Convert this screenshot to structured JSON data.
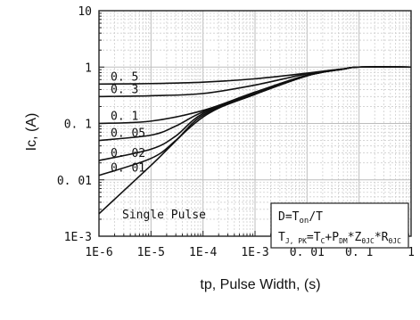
{
  "chart_data": {
    "type": "line",
    "xlabel": "tp, Pulse Width, (s)",
    "ylabel": "Ic, (A)",
    "xscale": "log",
    "yscale": "log",
    "xlim": [
      1e-06,
      1
    ],
    "ylim": [
      0.001,
      10
    ],
    "grid": true,
    "x_tick_labels": [
      "1E-6",
      "1E-5",
      "1E-4",
      "1E-3",
      "0. 01",
      "0. 1",
      "1"
    ],
    "y_tick_labels": [
      "1E-3",
      "0. 01",
      "0. 1",
      "1",
      "10"
    ],
    "series": [
      {
        "name": "0. 5",
        "x": [
          1e-06,
          1e-05,
          0.0001,
          0.001,
          0.01,
          0.05,
          0.1,
          1
        ],
        "y": [
          0.5,
          0.51,
          0.54,
          0.62,
          0.78,
          0.93,
          1.0,
          1.0
        ]
      },
      {
        "name": "0. 3",
        "x": [
          1e-06,
          1e-05,
          0.0001,
          0.001,
          0.01,
          0.05,
          0.1,
          1
        ],
        "y": [
          0.3,
          0.31,
          0.34,
          0.48,
          0.76,
          0.93,
          1.0,
          1.0
        ]
      },
      {
        "name": "0. 1",
        "x": [
          1e-06,
          1e-05,
          0.0001,
          0.001,
          0.01,
          0.05,
          0.1,
          1
        ],
        "y": [
          0.1,
          0.11,
          0.17,
          0.36,
          0.72,
          0.92,
          1.0,
          1.0
        ]
      },
      {
        "name": "0. 05",
        "x": [
          1e-06,
          1e-05,
          3e-05,
          0.0001,
          0.001,
          0.01,
          0.05,
          0.1,
          1
        ],
        "y": [
          0.05,
          0.062,
          0.09,
          0.16,
          0.34,
          0.71,
          0.92,
          1.0,
          1.0
        ]
      },
      {
        "name": "0. 02",
        "x": [
          1e-06,
          1e-05,
          3e-05,
          0.0001,
          0.001,
          0.01,
          0.05,
          0.1,
          1
        ],
        "y": [
          0.022,
          0.035,
          0.06,
          0.15,
          0.33,
          0.7,
          0.92,
          1.0,
          1.0
        ]
      },
      {
        "name": "0. 01",
        "x": [
          1e-06,
          1e-05,
          3e-05,
          0.0001,
          0.001,
          0.01,
          0.05,
          0.1,
          1
        ],
        "y": [
          0.012,
          0.024,
          0.05,
          0.14,
          0.33,
          0.7,
          0.92,
          1.0,
          1.0
        ]
      },
      {
        "name": "Single Pulse",
        "x": [
          1e-06,
          1e-05,
          0.0001,
          0.001,
          0.01,
          0.05,
          0.1,
          1
        ],
        "y": [
          0.0025,
          0.018,
          0.13,
          0.33,
          0.7,
          0.92,
          1.0,
          1.0
        ]
      }
    ],
    "legend": {
      "position": "bottom-right",
      "line1": {
        "text": "D=T",
        "sub": "on",
        "tail": "/T"
      },
      "line2": [
        {
          "t": "T"
        },
        {
          "s": "J, PK"
        },
        {
          "t": "=T"
        },
        {
          "s": "C"
        },
        {
          "t": "+P"
        },
        {
          "s": "DM"
        },
        {
          "t": "*Z"
        },
        {
          "s": "θJC"
        },
        {
          "t": "*R"
        },
        {
          "s": "θJC"
        }
      ]
    }
  }
}
